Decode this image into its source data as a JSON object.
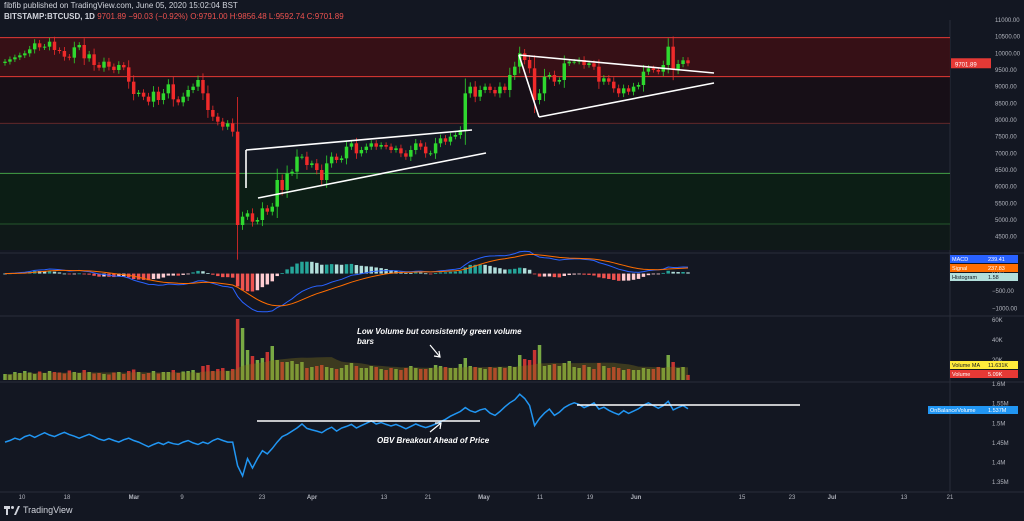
{
  "header": {
    "line1": "fibfib published on TradingView.com, June 05, 2020 15:02:04 BST",
    "symbol": "BITSTAMP:BTCUSD, 1D",
    "price": "9701.89",
    "change": "−90.03 (−0.92%)",
    "ohlc": "O:9791.00 H:9856.48 L:9592.74 C:9701.89"
  },
  "brand": "TradingView",
  "colors": {
    "bg": "#131722",
    "up": "#26a69a",
    "down": "#ef5350",
    "candle_up": "#2fd92f",
    "candle_down": "#ef2a2a",
    "grid": "#1e2230",
    "macd": "#2962ff",
    "signal": "#ff6d00",
    "obv": "#2196f3"
  },
  "chart_data": [
    {
      "type": "candlestick",
      "title": "BITSTAMP:BTCUSD, 1D",
      "ylim": [
        4100,
        11000
      ],
      "yticks": [
        4500,
        5000,
        5500,
        6000,
        6500,
        7000,
        7500,
        8000,
        8500,
        9000,
        9500,
        10000,
        10500,
        11000
      ],
      "ytick_labels": [
        "4500.00",
        "5000.00",
        "5500.00",
        "6000.00",
        "6500.00",
        "7000.00",
        "7500.00",
        "8000.00",
        "8500.00",
        "9000.00",
        "9500.00",
        "10000.00",
        "10500.00",
        "11000.00"
      ],
      "last_price_label": "9701.89",
      "resistance_levels": [
        10470,
        9300,
        7900
      ],
      "support_levels": [
        6400,
        4880
      ],
      "closes": [
        9750,
        9820,
        9880,
        9940,
        10000,
        10120,
        10300,
        10180,
        10200,
        10350,
        10100,
        10070,
        9900,
        9870,
        10180,
        10250,
        9850,
        9970,
        9650,
        9570,
        9750,
        9600,
        9500,
        9650,
        9580,
        9150,
        8780,
        8820,
        8700,
        8550,
        8850,
        8600,
        8800,
        9070,
        8620,
        8530,
        8700,
        8900,
        9000,
        9200,
        8800,
        8300,
        8100,
        7950,
        7800,
        7900,
        7650,
        4850,
        5100,
        5200,
        4950,
        5000,
        5350,
        5250,
        5400,
        6200,
        5900,
        6400,
        6450,
        6900,
        6900,
        6650,
        6700,
        6500,
        6200,
        6700,
        6900,
        6800,
        6850,
        7200,
        7300,
        7000,
        7100,
        7200,
        7300,
        7200,
        7250,
        7200,
        7100,
        7150,
        7000,
        6900,
        7100,
        7300,
        7200,
        7000,
        7000,
        7300,
        7450,
        7350,
        7500,
        7550,
        7700,
        8800,
        9000,
        8700,
        8900,
        9000,
        8900,
        8800,
        9000,
        8900,
        9350,
        9600,
        10000,
        9800,
        9550,
        8600,
        8800,
        9300,
        9350,
        9150,
        9200,
        9700,
        9750,
        9750,
        9800,
        9650,
        9700,
        9600,
        9150,
        9250,
        9150,
        8950,
        8800,
        8950,
        8850,
        9000,
        9050,
        9450,
        9550,
        9500,
        9450,
        9650,
        10200,
        9500,
        9680,
        9790,
        9701.89
      ]
    },
    {
      "type": "line",
      "title": "MACD",
      "ylim": [
        -1150,
        500
      ],
      "yticks": [
        0,
        -500,
        -1000
      ],
      "ytick_labels": [
        "0.00",
        "−500.00",
        "−1000.00"
      ],
      "series": [
        {
          "name": "MACD",
          "last_value": "239.41"
        },
        {
          "name": "Signal",
          "last_value": "237.83"
        },
        {
          "name": "Histogram",
          "last_value": "1.58"
        }
      ]
    },
    {
      "type": "bar",
      "title": "Volume",
      "ylim": [
        0,
        62000
      ],
      "yticks": [
        20000,
        40000,
        60000
      ],
      "ytick_labels": [
        "20K",
        "40K",
        "60K"
      ],
      "series": [
        {
          "name": "Volume MA",
          "last_value": "11.631K"
        },
        {
          "name": "Volume",
          "last_value": "5.09K"
        }
      ],
      "annotation": "Low Volume but consistently green volume bars",
      "volumes": [
        6000,
        5500,
        8000,
        7000,
        9000,
        7500,
        6000,
        8500,
        7000,
        9000,
        8000,
        7500,
        6500,
        9500,
        8000,
        7000,
        10000,
        8000,
        6500,
        7000,
        6000,
        5500,
        7500,
        8000,
        6000,
        9000,
        10500,
        8000,
        6000,
        7000,
        9000,
        6500,
        8000,
        8000,
        10000,
        7000,
        8500,
        9000,
        10000,
        7000,
        14000,
        15000,
        9000,
        11000,
        12000,
        9000,
        11000,
        61000,
        52000,
        30000,
        24000,
        20000,
        22000,
        28000,
        34000,
        20000,
        18000,
        18000,
        19000,
        16000,
        18000,
        12000,
        13000,
        14000,
        15000,
        13000,
        12000,
        11000,
        12000,
        15000,
        17000,
        14000,
        12000,
        12000,
        14000,
        13000,
        11000,
        10000,
        12000,
        11000,
        10000,
        12000,
        14000,
        12000,
        11000,
        11000,
        12000,
        15000,
        14000,
        13000,
        12000,
        12000,
        16000,
        22000,
        14000,
        13000,
        12000,
        11000,
        13000,
        12000,
        13000,
        12000,
        14000,
        13000,
        25000,
        21000,
        20000,
        30000,
        35000,
        14000,
        15000,
        16000,
        14000,
        17000,
        19000,
        13000,
        12000,
        15000,
        13000,
        11000,
        17000,
        14000,
        12000,
        13000,
        12000,
        10000,
        11000,
        10000,
        10000,
        12000,
        11000,
        11000,
        13000,
        12000,
        25000,
        18000,
        12000,
        13000,
        5090
      ]
    },
    {
      "type": "line",
      "title": "OnBalanceVolume",
      "ylim": [
        1330000,
        1600000
      ],
      "yticks": [
        1350000,
        1400000,
        1450000,
        1500000,
        1550000,
        1600000
      ],
      "ytick_labels": [
        "1.35M",
        "1.4M",
        "1.45M",
        "1.5M",
        "1.55M",
        "1.6M"
      ],
      "series": [
        {
          "name": "OnBalanceVolume",
          "last_value": "1.537M"
        }
      ],
      "annotation": "OBV Breakout Ahead of Price",
      "values": [
        1452000,
        1456000,
        1462000,
        1458000,
        1466000,
        1470000,
        1464000,
        1470000,
        1476000,
        1470000,
        1466000,
        1472000,
        1477000,
        1471000,
        1467000,
        1462000,
        1467000,
        1472000,
        1466000,
        1460000,
        1456000,
        1461000,
        1456000,
        1452000,
        1458000,
        1462000,
        1456000,
        1452000,
        1446000,
        1440000,
        1446000,
        1451000,
        1446000,
        1452000,
        1448000,
        1446000,
        1452000,
        1456000,
        1450000,
        1446000,
        1452000,
        1448000,
        1456000,
        1461000,
        1456000,
        1452000,
        1452000,
        1392000,
        1366000,
        1410000,
        1386000,
        1410000,
        1430000,
        1422000,
        1436000,
        1452000,
        1466000,
        1472000,
        1480000,
        1488000,
        1498000,
        1487000,
        1483000,
        1480000,
        1476000,
        1484000,
        1490000,
        1480000,
        1488000,
        1492000,
        1497000,
        1488000,
        1494000,
        1500000,
        1506000,
        1498000,
        1502000,
        1497000,
        1493000,
        1497000,
        1492000,
        1486000,
        1492000,
        1498000,
        1493000,
        1489000,
        1493000,
        1498000,
        1504000,
        1510000,
        1518000,
        1524000,
        1530000,
        1540000,
        1532000,
        1528000,
        1534000,
        1537000,
        1526000,
        1520000,
        1530000,
        1542000,
        1552000,
        1560000,
        1574000,
        1563000,
        1545000,
        1494000,
        1512000,
        1526000,
        1536000,
        1520000,
        1528000,
        1540000,
        1547000,
        1552000,
        1548000,
        1540000,
        1545000,
        1552000,
        1536000,
        1541000,
        1533000,
        1527000,
        1522000,
        1532000,
        1525000,
        1531000,
        1537000,
        1546000,
        1552000,
        1545000,
        1538000,
        1545000,
        1556000,
        1534000,
        1540000,
        1545000,
        1537000
      ]
    }
  ],
  "x_axis": {
    "labels": [
      "10",
      "18",
      "Mar",
      "9",
      "23",
      "Apr",
      "13",
      "21",
      "May",
      "11",
      "19",
      "Jun",
      "15",
      "23",
      "Jul",
      "13",
      "21"
    ]
  }
}
